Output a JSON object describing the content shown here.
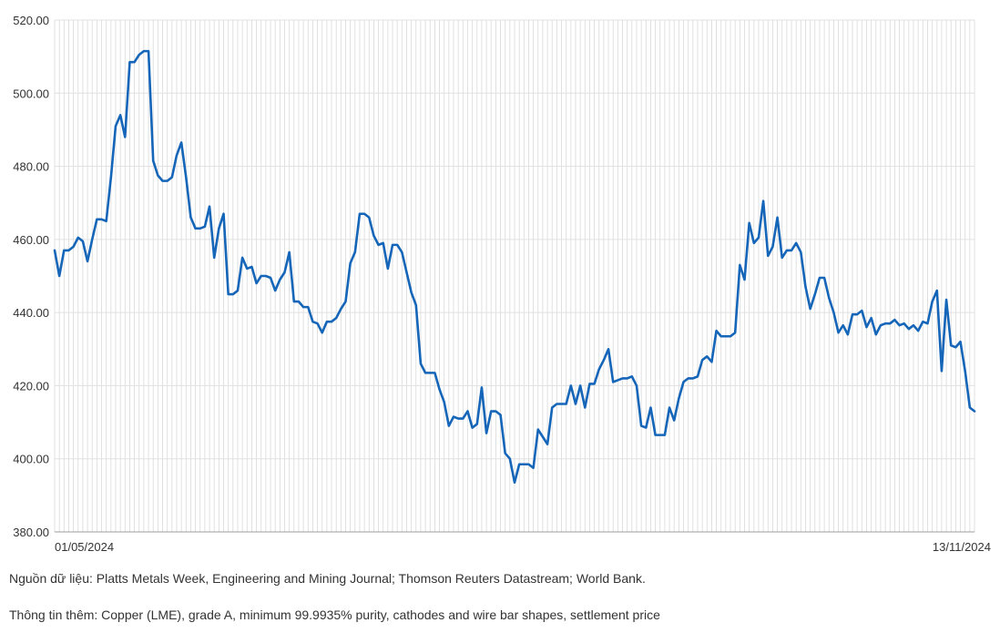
{
  "chart_data": {
    "type": "line",
    "title": "",
    "xlabel": "",
    "ylabel": "",
    "x_tick_labels": [
      "01/05/2024",
      "13/11/2024"
    ],
    "x_start": "01/05/2024",
    "x_end": "13/11/2024",
    "ylim": [
      380,
      520
    ],
    "yticks": [
      "380.00",
      "400.00",
      "420.00",
      "440.00",
      "460.00",
      "480.00",
      "500.00",
      "520.00"
    ],
    "grid": true,
    "line_color": "#1565b8",
    "series": [
      {
        "name": "",
        "values": [
          457,
          450,
          457,
          457,
          458,
          460.5,
          459.5,
          454,
          460,
          465.5,
          465.5,
          465,
          477,
          491,
          494,
          488,
          508.5,
          508.5,
          510.5,
          511.5,
          511.5,
          481.5,
          477.5,
          476,
          476,
          477,
          483,
          486.5,
          477,
          466,
          463,
          463,
          463.5,
          469,
          455,
          463,
          467,
          445,
          445,
          446,
          455,
          452,
          452.5,
          448,
          450,
          450,
          449.5,
          446,
          449,
          451,
          456.5,
          443,
          443,
          441.5,
          441.5,
          437.5,
          437,
          434.5,
          437.5,
          437.5,
          438.5,
          441,
          443,
          453.5,
          456.5,
          467,
          467,
          466,
          461,
          458.5,
          459,
          452,
          458.5,
          458.5,
          456.5,
          451,
          445.5,
          442,
          426,
          423.5,
          423.5,
          423.5,
          419,
          415.5,
          409,
          411.5,
          411,
          411,
          413,
          408.5,
          409.5,
          419.5,
          407,
          413,
          413,
          412,
          401.5,
          400,
          393.5,
          398.5,
          398.5,
          398.5,
          397.5,
          408,
          406,
          404,
          414,
          415,
          415,
          415,
          420,
          415,
          420,
          414,
          420.5,
          420.5,
          424.5,
          427,
          430,
          421,
          421.5,
          422,
          422,
          422.5,
          420,
          409,
          408.5,
          414,
          406.5,
          406.5,
          406.5,
          414,
          410.5,
          416.5,
          421,
          422,
          422,
          422.5,
          427,
          428,
          426.5,
          435,
          433.5,
          433.5,
          433.5,
          434.5,
          453,
          449,
          464.5,
          459,
          460.5,
          470.5,
          455.5,
          458,
          466,
          455,
          457,
          457,
          459,
          456.5,
          447,
          441,
          445,
          449.5,
          449.5,
          444,
          440,
          434.5,
          436.5,
          434,
          439.5,
          439.5,
          440.5,
          436,
          438.5,
          434,
          436.5,
          437,
          437,
          438,
          436.5,
          437,
          435.5,
          436.5,
          435,
          437.5,
          437,
          443,
          446,
          424,
          443.5,
          431,
          430.5,
          432,
          424,
          414,
          413
        ]
      }
    ]
  },
  "notes": {
    "source": "Nguồn dữ liệu: Platts Metals Week, Engineering and Mining Journal; Thomson Reuters Datastream; World Bank.",
    "more": "Thông tin thêm: Copper (LME), grade A, minimum 99.9935% purity, cathodes and wire bar shapes, settlement price"
  }
}
